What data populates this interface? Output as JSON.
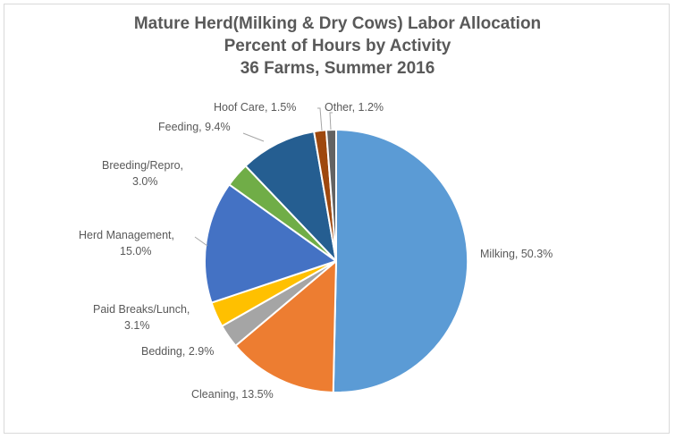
{
  "chart_data": {
    "type": "pie",
    "title_lines": [
      "Mature Herd(Milking & Dry Cows) Labor Allocation",
      "Percent of Hours by Activity",
      "36 Farms, Summer 2016"
    ],
    "slices": [
      {
        "label": "Milking",
        "value": 50.3,
        "display": "Milking, 50.3%",
        "color": "#5b9bd5"
      },
      {
        "label": "Cleaning",
        "value": 13.5,
        "display": "Cleaning, 13.5%",
        "color": "#ed7d31"
      },
      {
        "label": "Bedding",
        "value": 2.9,
        "display": "Bedding, 2.9%",
        "color": "#a5a5a5"
      },
      {
        "label": "Paid Breaks/Lunch",
        "value": 3.1,
        "display_lines": [
          "Paid Breaks/Lunch,",
          "3.1%"
        ],
        "color": "#ffc000"
      },
      {
        "label": "Herd Management",
        "value": 15.0,
        "display_lines": [
          "Herd Management,",
          "15.0%"
        ],
        "color": "#4472c4"
      },
      {
        "label": "Breeding/Repro",
        "value": 3.0,
        "display_lines": [
          "Breeding/Repro,",
          "3.0%"
        ],
        "color": "#70ad47"
      },
      {
        "label": "Feeding",
        "value": 9.4,
        "display": "Feeding, 9.4%",
        "color": "#255e91"
      },
      {
        "label": "Hoof Care",
        "value": 1.5,
        "display": "Hoof Care, 1.5%",
        "color": "#9e480e"
      },
      {
        "label": "Other",
        "value": 1.2,
        "display": "Other, 1.2%",
        "color": "#636363"
      }
    ]
  }
}
